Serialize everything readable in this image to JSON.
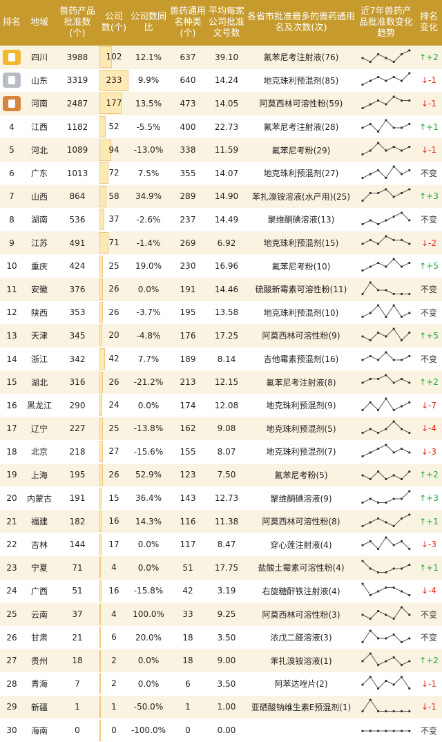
{
  "headers": [
    "排名",
    "地域",
    "兽药产品批准数(个)",
    "公司数(个)",
    "公司数同比",
    "兽药通用名种类(个)",
    "平均每家公司批准文号数",
    "各省市批准最多的兽药通用名及次数(次)",
    "近7年兽药产品批准数变化趋势",
    "排名变化"
  ],
  "rows": [
    {
      "rank": "1",
      "medal": "gold",
      "region": "四川",
      "products": "3988",
      "companies": "102",
      "yoy": "12.1%",
      "kinds": "637",
      "avg": "39.10",
      "top": "氟苯尼考注射液(76)",
      "trend": [
        3,
        2,
        4,
        3,
        2,
        4,
        5
      ],
      "change": "↑+2",
      "dir": "up"
    },
    {
      "rank": "2",
      "medal": "silver",
      "region": "山东",
      "products": "3319",
      "companies": "233",
      "yoy": "9.9%",
      "kinds": "640",
      "avg": "14.24",
      "top": "地克珠利预混剂(85)",
      "trend": [
        2,
        3,
        4,
        3,
        4,
        3,
        5
      ],
      "change": "↓-1",
      "dir": "down"
    },
    {
      "rank": "3",
      "medal": "bronze",
      "region": "河南",
      "products": "2487",
      "companies": "177",
      "yoy": "13.5%",
      "kinds": "473",
      "avg": "14.05",
      "top": "阿莫西林可溶性粉(59)",
      "trend": [
        2,
        3,
        4,
        3,
        5,
        4,
        4
      ],
      "change": "↓-1",
      "dir": "down"
    },
    {
      "rank": "4",
      "medal": "",
      "region": "江西",
      "products": "1182",
      "companies": "52",
      "yoy": "-5.5%",
      "kinds": "400",
      "avg": "22.73",
      "top": "氟苯尼考注射液(28)",
      "trend": [
        3,
        4,
        2,
        5,
        3,
        3,
        4
      ],
      "change": "↑+1",
      "dir": "up"
    },
    {
      "rank": "5",
      "medal": "",
      "region": "河北",
      "products": "1089",
      "companies": "94",
      "yoy": "-13.0%",
      "kinds": "338",
      "avg": "11.59",
      "top": "氟苯尼考粉(29)",
      "trend": [
        2,
        3,
        5,
        3,
        4,
        3,
        4
      ],
      "change": "↓-1",
      "dir": "down"
    },
    {
      "rank": "6",
      "medal": "",
      "region": "广东",
      "products": "1013",
      "companies": "72",
      "yoy": "7.5%",
      "kinds": "355",
      "avg": "14.07",
      "top": "地克珠利预混剂(27)",
      "trend": [
        2,
        3,
        4,
        2,
        5,
        3,
        4
      ],
      "change": "不变",
      "dir": "same"
    },
    {
      "rank": "7",
      "medal": "",
      "region": "山西",
      "products": "864",
      "companies": "58",
      "yoy": "34.9%",
      "kinds": "289",
      "avg": "14.90",
      "top": "苯扎溴铵溶液(水产用)(25)",
      "trend": [
        2,
        4,
        4,
        5,
        3,
        4,
        5
      ],
      "change": "↑+3",
      "dir": "up"
    },
    {
      "rank": "8",
      "medal": "",
      "region": "湖南",
      "products": "536",
      "companies": "37",
      "yoy": "-2.6%",
      "kinds": "237",
      "avg": "14.49",
      "top": "聚维酮碘溶液(13)",
      "trend": [
        2,
        3,
        2,
        3,
        4,
        5,
        3
      ],
      "change": "不变",
      "dir": "same"
    },
    {
      "rank": "9",
      "medal": "",
      "region": "江苏",
      "products": "491",
      "companies": "71",
      "yoy": "-1.4%",
      "kinds": "269",
      "avg": "6.92",
      "top": "地克珠利预混剂(15)",
      "trend": [
        3,
        4,
        3,
        5,
        4,
        4,
        3
      ],
      "change": "↓-2",
      "dir": "down"
    },
    {
      "rank": "10",
      "medal": "",
      "region": "重庆",
      "products": "424",
      "companies": "25",
      "yoy": "19.0%",
      "kinds": "230",
      "avg": "16.96",
      "top": "氟苯尼考粉(10)",
      "trend": [
        2,
        3,
        4,
        3,
        5,
        3,
        4
      ],
      "change": "↑+5",
      "dir": "up"
    },
    {
      "rank": "11",
      "medal": "",
      "region": "安徽",
      "products": "376",
      "companies": "26",
      "yoy": "0.0%",
      "kinds": "191",
      "avg": "14.46",
      "top": "硫酸新霉素可溶性粉(11)",
      "trend": [
        2,
        5,
        3,
        3,
        2,
        2,
        2
      ],
      "change": "不变",
      "dir": "same"
    },
    {
      "rank": "12",
      "medal": "",
      "region": "陕西",
      "products": "353",
      "companies": "26",
      "yoy": "-3.7%",
      "kinds": "195",
      "avg": "13.58",
      "top": "地克珠利预混剂(10)",
      "trend": [
        2,
        3,
        5,
        2,
        5,
        2,
        3
      ],
      "change": "不变",
      "dir": "same"
    },
    {
      "rank": "13",
      "medal": "",
      "region": "天津",
      "products": "345",
      "companies": "20",
      "yoy": "-4.8%",
      "kinds": "176",
      "avg": "17.25",
      "top": "阿莫西林可溶性粉(9)",
      "trend": [
        3,
        2,
        4,
        3,
        5,
        2,
        4
      ],
      "change": "↑+5",
      "dir": "up"
    },
    {
      "rank": "14",
      "medal": "",
      "region": "浙江",
      "products": "342",
      "companies": "42",
      "yoy": "7.7%",
      "kinds": "189",
      "avg": "8.14",
      "top": "吉他霉素预混剂(16)",
      "trend": [
        3,
        4,
        3,
        5,
        3,
        3,
        4
      ],
      "change": "不变",
      "dir": "same"
    },
    {
      "rank": "15",
      "medal": "",
      "region": "湖北",
      "products": "316",
      "companies": "26",
      "yoy": "-21.2%",
      "kinds": "213",
      "avg": "12.15",
      "top": "氟苯尼考注射液(8)",
      "trend": [
        3,
        4,
        4,
        5,
        3,
        4,
        3
      ],
      "change": "↑+2",
      "dir": "up"
    },
    {
      "rank": "16",
      "medal": "",
      "region": "黑龙江",
      "products": "290",
      "companies": "24",
      "yoy": "0.0%",
      "kinds": "174",
      "avg": "12.08",
      "top": "地克珠利预混剂(9)",
      "trend": [
        2,
        4,
        2,
        5,
        2,
        3,
        4
      ],
      "change": "↓-7",
      "dir": "down"
    },
    {
      "rank": "17",
      "medal": "",
      "region": "辽宁",
      "products": "227",
      "companies": "25",
      "yoy": "-13.8%",
      "kinds": "162",
      "avg": "9.08",
      "top": "地克珠利预混剂(5)",
      "trend": [
        2,
        3,
        2,
        3,
        5,
        3,
        2
      ],
      "change": "↓-4",
      "dir": "down"
    },
    {
      "rank": "18",
      "medal": "",
      "region": "北京",
      "products": "218",
      "companies": "27",
      "yoy": "-15.6%",
      "kinds": "155",
      "avg": "8.07",
      "top": "地克珠利预混剂(7)",
      "trend": [
        2,
        3,
        4,
        5,
        3,
        4,
        3
      ],
      "change": "↓-3",
      "dir": "down"
    },
    {
      "rank": "19",
      "medal": "",
      "region": "上海",
      "products": "195",
      "companies": "26",
      "yoy": "52.9%",
      "kinds": "123",
      "avg": "7.50",
      "top": "氟苯尼考粉(5)",
      "trend": [
        3,
        2,
        4,
        2,
        3,
        2,
        4
      ],
      "change": "↑+2",
      "dir": "up"
    },
    {
      "rank": "20",
      "medal": "",
      "region": "内蒙古",
      "products": "191",
      "companies": "15",
      "yoy": "36.4%",
      "kinds": "143",
      "avg": "12.73",
      "top": "聚维酮碘溶液(9)",
      "trend": [
        2,
        3,
        2,
        2,
        3,
        3,
        5
      ],
      "change": "↑+3",
      "dir": "up"
    },
    {
      "rank": "21",
      "medal": "",
      "region": "福建",
      "products": "182",
      "companies": "16",
      "yoy": "14.3%",
      "kinds": "116",
      "avg": "11.38",
      "top": "阿莫西林可溶性粉(8)",
      "trend": [
        2,
        3,
        4,
        3,
        2,
        4,
        5
      ],
      "change": "↑+1",
      "dir": "up"
    },
    {
      "rank": "22",
      "medal": "",
      "region": "吉林",
      "products": "144",
      "companies": "17",
      "yoy": "0.0%",
      "kinds": "117",
      "avg": "8.47",
      "top": "穿心莲注射液(4)",
      "trend": [
        3,
        4,
        2,
        5,
        3,
        4,
        2
      ],
      "change": "↓-3",
      "dir": "down"
    },
    {
      "rank": "23",
      "medal": "",
      "region": "宁夏",
      "products": "71",
      "companies": "4",
      "yoy": "0.0%",
      "kinds": "51",
      "avg": "17.75",
      "top": "盐酸土霉素可溶性粉(4)",
      "trend": [
        5,
        3,
        2,
        2,
        3,
        3,
        4
      ],
      "change": "↑+1",
      "dir": "up"
    },
    {
      "rank": "24",
      "medal": "",
      "region": "广西",
      "products": "51",
      "companies": "16",
      "yoy": "-15.8%",
      "kinds": "42",
      "avg": "3.19",
      "top": "右旋糖酐铁注射液(4)",
      "trend": [
        5,
        2,
        3,
        4,
        4,
        3,
        2
      ],
      "change": "↓-4",
      "dir": "down"
    },
    {
      "rank": "25",
      "medal": "",
      "region": "云南",
      "products": "37",
      "companies": "4",
      "yoy": "100.0%",
      "kinds": "33",
      "avg": "9.25",
      "top": "阿莫西林可溶性粉(3)",
      "trend": [
        3,
        2,
        4,
        3,
        2,
        5,
        3
      ],
      "change": "不变",
      "dir": "same"
    },
    {
      "rank": "26",
      "medal": "",
      "region": "甘肃",
      "products": "21",
      "companies": "6",
      "yoy": "20.0%",
      "kinds": "18",
      "avg": "3.50",
      "top": "浓戊二醛溶液(3)",
      "trend": [
        2,
        5,
        3,
        3,
        4,
        2,
        3
      ],
      "change": "不变",
      "dir": "same"
    },
    {
      "rank": "27",
      "medal": "",
      "region": "贵州",
      "products": "18",
      "companies": "2",
      "yoy": "0.0%",
      "kinds": "18",
      "avg": "9.00",
      "top": "苯扎溴铵溶液(1)",
      "trend": [
        3,
        5,
        2,
        3,
        4,
        2,
        3
      ],
      "change": "↑+2",
      "dir": "up"
    },
    {
      "rank": "28",
      "medal": "",
      "region": "青海",
      "products": "7",
      "companies": "2",
      "yoy": "0.0%",
      "kinds": "6",
      "avg": "3.50",
      "top": "阿苯达唑片(2)",
      "trend": [
        3,
        5,
        2,
        4,
        3,
        5,
        2
      ],
      "change": "↓-1",
      "dir": "down"
    },
    {
      "rank": "29",
      "medal": "",
      "region": "新疆",
      "products": "1",
      "companies": "1",
      "yoy": "-50.0%",
      "kinds": "1",
      "avg": "1.00",
      "top": "亚硒酸钠维生素E预混剂(1)",
      "trend": [
        2,
        5,
        2,
        2,
        2,
        2,
        2
      ],
      "change": "↓-1",
      "dir": "down"
    },
    {
      "rank": "30",
      "medal": "",
      "region": "海南",
      "products": "0",
      "companies": "0",
      "yoy": "-100.0%",
      "kinds": "0",
      "avg": "0.00",
      "top": "",
      "trend": [
        3,
        3,
        3,
        3,
        3,
        3,
        3
      ],
      "change": "不变",
      "dir": "same"
    }
  ],
  "colors": {
    "header": "#c69a2c",
    "alt_row": "#fbf3e1",
    "bar": "#fde9b3",
    "up": "#1aa72d",
    "down": "#e3271b"
  }
}
